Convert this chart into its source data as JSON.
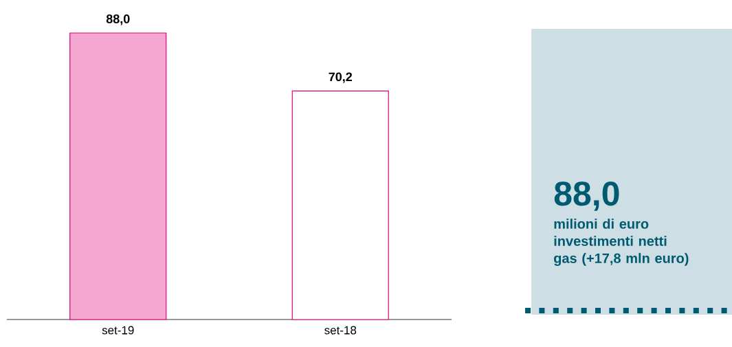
{
  "chart_data": {
    "type": "bar",
    "categories": [
      "set-19",
      "set-18"
    ],
    "values": [
      88.0,
      70.2
    ],
    "value_labels": [
      "88,0",
      "70,2"
    ],
    "colors": [
      "#f3a6d0",
      "#ffffff"
    ],
    "color": "#e2007a",
    "annotations": [
      "88,0",
      "milioni di euro investimenti netti gas (+17,8 mln euro)"
    ]
  }
}
